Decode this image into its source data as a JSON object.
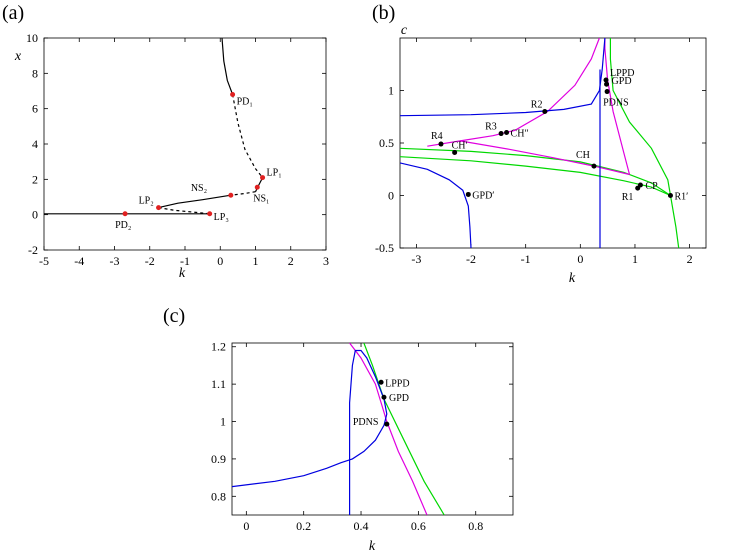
{
  "colors": {
    "black": "#000000",
    "magenta": "#e000e0",
    "blue": "#0000e0",
    "green": "#00d800",
    "marker_red": "#e02020"
  },
  "chart_data": [
    {
      "panel": "(a)",
      "type": "line",
      "xlabel": "k",
      "ylabel": "x",
      "xlim": [
        -5,
        3
      ],
      "ylim": [
        -2,
        10
      ],
      "xticks": [
        "-5",
        "-4",
        "-3",
        "-2",
        "-1",
        "0",
        "1",
        "2",
        "3"
      ],
      "yticks": [
        "-2",
        "0",
        "2",
        "4",
        "6",
        "8",
        "10"
      ],
      "series": [
        {
          "style": "solid",
          "points": [
            [
              0.05,
              10
            ],
            [
              0.1,
              8.7
            ],
            [
              0.2,
              7.6
            ],
            [
              0.35,
              6.8
            ]
          ]
        },
        {
          "style": "dashed",
          "points": [
            [
              0.35,
              6.8
            ],
            [
              0.5,
              5.2
            ],
            [
              0.7,
              3.7
            ],
            [
              1.0,
              2.6
            ],
            [
              1.2,
              2.1
            ]
          ]
        },
        {
          "style": "solid",
          "points": [
            [
              1.2,
              2.1
            ],
            [
              1.1,
              1.7
            ],
            [
              1.0,
              1.3
            ]
          ]
        },
        {
          "style": "dashed",
          "points": [
            [
              1.0,
              1.3
            ],
            [
              0.7,
              1.2
            ],
            [
              0.3,
              1.1
            ]
          ]
        },
        {
          "style": "solid",
          "points": [
            [
              0.3,
              1.1
            ],
            [
              -0.5,
              0.85
            ],
            [
              -1.2,
              0.65
            ],
            [
              -1.75,
              0.4
            ]
          ]
        },
        {
          "style": "dashed",
          "points": [
            [
              -1.75,
              0.4
            ],
            [
              -1.3,
              0.25
            ],
            [
              -0.8,
              0.15
            ],
            [
              -0.3,
              0.05
            ]
          ]
        },
        {
          "style": "solid",
          "points": [
            [
              -0.3,
              0.05
            ],
            [
              -2.7,
              0.05
            ],
            [
              -5,
              0.05
            ]
          ]
        }
      ],
      "points": [
        {
          "label": "PD₁",
          "x": 0.35,
          "y": 6.8
        },
        {
          "label": "LP₁",
          "x": 1.2,
          "y": 2.1
        },
        {
          "label": "NS₁",
          "x": 1.05,
          "y": 1.55
        },
        {
          "label": "NS₂",
          "x": 0.3,
          "y": 1.1
        },
        {
          "label": "LP₂",
          "x": -1.75,
          "y": 0.4
        },
        {
          "label": "LP₃",
          "x": -0.3,
          "y": 0.05
        },
        {
          "label": "PD₂",
          "x": -2.7,
          "y": 0.05
        }
      ]
    },
    {
      "panel": "(b)",
      "type": "line",
      "xlabel": "k",
      "ylabel": "c",
      "xlim": [
        -3.3,
        2.3
      ],
      "ylim": [
        -0.5,
        1.5
      ],
      "xticks": [
        "-3",
        "-2",
        "-1",
        "0",
        "1",
        "2"
      ],
      "yticks": [
        "-0.5",
        "0",
        "0.5",
        "1"
      ],
      "points": [
        {
          "label": "LPPD",
          "x": 0.47,
          "y": 1.1
        },
        {
          "label": "GPD",
          "x": 0.48,
          "y": 1.06
        },
        {
          "label": "PDNS",
          "x": 0.49,
          "y": 0.99
        },
        {
          "label": "R2",
          "x": -0.65,
          "y": 0.8
        },
        {
          "label": "R3",
          "x": -1.45,
          "y": 0.59
        },
        {
          "label": "CH″",
          "x": -1.35,
          "y": 0.6
        },
        {
          "label": "R4",
          "x": -2.55,
          "y": 0.49
        },
        {
          "label": "CH′",
          "x": -2.3,
          "y": 0.41
        },
        {
          "label": "CH",
          "x": 0.25,
          "y": 0.28
        },
        {
          "label": "CP",
          "x": 1.1,
          "y": 0.1
        },
        {
          "label": "R1",
          "x": 1.05,
          "y": 0.07
        },
        {
          "label": "R1′",
          "x": 1.65,
          "y": 0.0
        },
        {
          "label": "GPD′",
          "x": -2.05,
          "y": 0.01
        }
      ]
    },
    {
      "panel": "(c)",
      "type": "line",
      "xlabel": "k",
      "ylabel": "",
      "xlim": [
        -0.05,
        0.93
      ],
      "ylim": [
        0.75,
        1.21
      ],
      "xticks": [
        "0",
        "0.2",
        "0.4",
        "0.6",
        "0.8"
      ],
      "yticks": [
        "0.8",
        "0.9",
        "1",
        "1.1",
        "1.2"
      ],
      "points": [
        {
          "label": "LPPD",
          "x": 0.47,
          "y": 1.105
        },
        {
          "label": "GPD",
          "x": 0.48,
          "y": 1.065
        },
        {
          "label": "PDNS",
          "x": 0.49,
          "y": 0.993
        }
      ]
    }
  ]
}
